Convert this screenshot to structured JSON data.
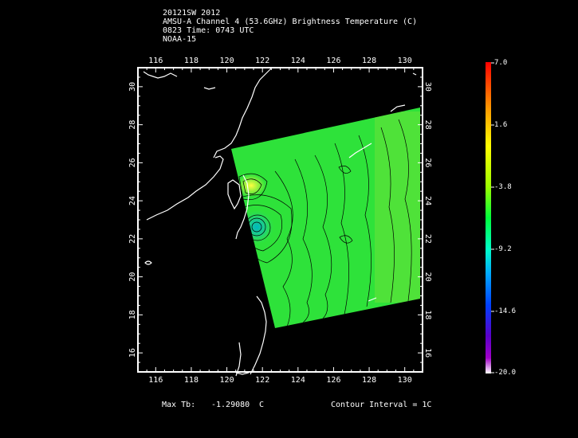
{
  "header": {
    "line1": "20121SW 2012",
    "line2": "AMSU-A Channel 4 (53.6GHz) Brightness Temperature (C)",
    "line3": "0823 Time: 0743 UTC",
    "line4": "NOAA-15"
  },
  "map": {
    "lon_range": [
      115,
      131
    ],
    "lat_range": [
      15,
      31
    ],
    "lon_ticks": [
      "116",
      "118",
      "120",
      "122",
      "124",
      "126",
      "128",
      "130"
    ],
    "lat_ticks": [
      "16",
      "18",
      "20",
      "22",
      "24",
      "26",
      "28",
      "30"
    ],
    "swath_color": "#2ee23a",
    "coast_color": "#ffffff",
    "contour_color": "#000000"
  },
  "colorbar": {
    "labels": [
      "7.0",
      "1.6",
      "-3.8",
      "-9.2",
      "-14.6",
      "-20.0"
    ],
    "max": 7.0,
    "min": -20.0
  },
  "footer": {
    "max_tb_label": "Max Tb:",
    "max_tb_value": "-1.29080",
    "max_tb_unit": "C",
    "contour_label": "Contour Interval = 1C"
  }
}
